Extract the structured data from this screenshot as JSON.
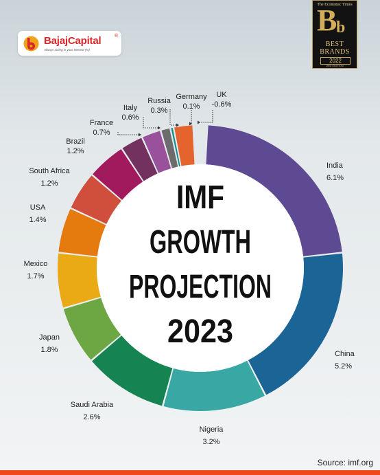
{
  "brand": {
    "name": "BajajCapital",
    "registered": "®",
    "tagline": "Always acting in your Interest (%)",
    "color": "#d9262b"
  },
  "award": {
    "publication": "The Economic Times",
    "letters_big": "B",
    "letters_small": "b",
    "line1": "BEST",
    "line2": "BRANDS",
    "year": "2022",
    "edition": "2ND EDITION"
  },
  "chart_data": {
    "type": "pie",
    "variant": "donut",
    "title": "IMF GROWTH PROJECTION 2023",
    "title_lines": [
      "IMF",
      "GROWTH",
      "PROJECTION",
      "2023"
    ],
    "unit": "%",
    "slices": [
      {
        "label": "India",
        "value": 6.1,
        "display": "6.1%",
        "color": "#5e4a92"
      },
      {
        "label": "China",
        "value": 5.2,
        "display": "5.2%",
        "color": "#1b6596"
      },
      {
        "label": "Nigeria",
        "value": 3.2,
        "display": "3.2%",
        "color": "#39a7a4"
      },
      {
        "label": "Saudi Arabia",
        "value": 2.6,
        "display": "2.6%",
        "color": "#168452"
      },
      {
        "label": "Japan",
        "value": 1.8,
        "display": "1.8%",
        "color": "#6ca744"
      },
      {
        "label": "Mexico",
        "value": 1.7,
        "display": "1.7%",
        "color": "#eaaa16"
      },
      {
        "label": "USA",
        "value": 1.4,
        "display": "1.4%",
        "color": "#e57a0e"
      },
      {
        "label": "South Africa",
        "value": 1.2,
        "display": "1.2%",
        "color": "#d04f3c"
      },
      {
        "label": "Brazil",
        "value": 1.2,
        "display": "1.2%",
        "color": "#a21a5e"
      },
      {
        "label": "France",
        "value": 0.7,
        "display": "0.7%",
        "color": "#72315e"
      },
      {
        "label": "Italy",
        "value": 0.6,
        "display": "0.6%",
        "color": "#9a519c"
      },
      {
        "label": "Russia",
        "value": 0.3,
        "display": "0.3%",
        "color": "#6c6c6c"
      },
      {
        "label": "Germany",
        "value": 0.1,
        "display": "0.1%",
        "color": "#0f8c8e"
      },
      {
        "label": "UK",
        "value": -0.6,
        "display": "-0.6%",
        "color": "#e5632c"
      }
    ]
  },
  "source": "Source: imf.org",
  "footer_bar_color": "#f04a1c"
}
